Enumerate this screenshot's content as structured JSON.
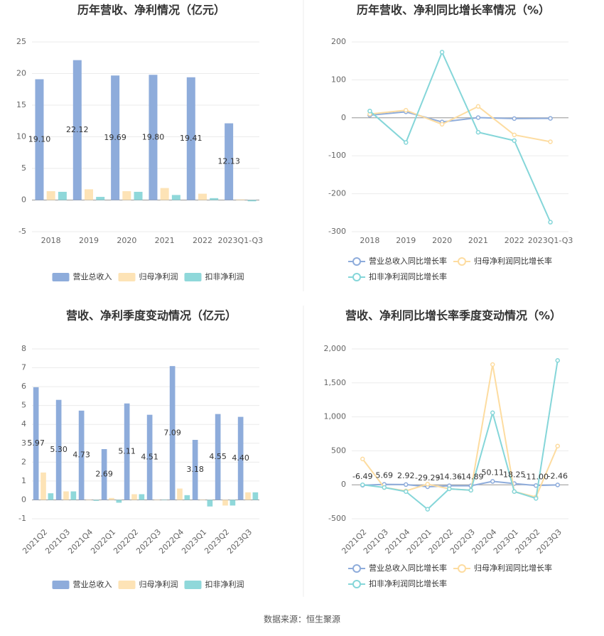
{
  "chart_data": [
    {
      "type": "bar",
      "title": "历年营收、净利情况（亿元）",
      "categories": [
        "2018",
        "2019",
        "2020",
        "2021",
        "2022",
        "2023Q1-Q3"
      ],
      "series": [
        {
          "name": "营业总收入",
          "color": "#8eacdb",
          "values": [
            19.1,
            22.12,
            19.69,
            19.8,
            19.41,
            12.13
          ],
          "value_labels": [
            "19.10",
            "22.12",
            "19.69",
            "19.80",
            "19.41",
            "12.13"
          ]
        },
        {
          "name": "归母净利润",
          "color": "#fde3b6",
          "values": [
            1.4,
            1.7,
            1.4,
            1.9,
            1.0,
            0.1
          ]
        },
        {
          "name": "扣非净利润",
          "color": "#8fd8da",
          "values": [
            1.3,
            0.5,
            1.3,
            0.8,
            0.3,
            -0.2
          ]
        }
      ],
      "ylim": [
        -5,
        25
      ],
      "yticks": [
        -5,
        0,
        5,
        10,
        15,
        20,
        25
      ],
      "grid": true
    },
    {
      "type": "line",
      "title": "历年营收、净利同比增长率情况（%）",
      "categories": [
        "2018",
        "2019",
        "2020",
        "2021",
        "2022",
        "2023Q1-Q3"
      ],
      "series": [
        {
          "name": "营业总收入同比增长率",
          "color": "#8eacdb",
          "values": [
            6.85,
            15.82,
            -10.99,
            0.58,
            -1.99,
            -1.47
          ]
        },
        {
          "name": "归母净利润同比增长率",
          "color": "#fddca0",
          "values": [
            10,
            20,
            -17,
            30,
            -45,
            -63
          ]
        },
        {
          "name": "扣非净利润同比增长率",
          "color": "#85d6d9",
          "values": [
            18,
            -65,
            173,
            -38,
            -60,
            -275
          ]
        }
      ],
      "ylim": [
        -300,
        200
      ],
      "yticks": [
        -300,
        -200,
        -100,
        0,
        100,
        200
      ],
      "grid": true
    },
    {
      "type": "bar",
      "title": "营收、净利季度变动情况（亿元）",
      "categories": [
        "2021Q2",
        "2021Q3",
        "2021Q4",
        "2022Q1",
        "2022Q2",
        "2022Q3",
        "2022Q4",
        "2023Q1",
        "2023Q2",
        "2023Q3"
      ],
      "series": [
        {
          "name": "营业总收入",
          "color": "#8eacdb",
          "values": [
            5.97,
            5.3,
            4.73,
            2.69,
            5.11,
            4.51,
            7.09,
            3.18,
            4.55,
            4.4
          ],
          "value_labels": [
            "5.97",
            "5.30",
            "4.73",
            "2.69",
            "5.11",
            "4.51",
            "7.09",
            "3.18",
            "4.55",
            "4.40"
          ]
        },
        {
          "name": "归母净利润",
          "color": "#fde3b6",
          "values": [
            1.45,
            0.45,
            0.02,
            0.1,
            0.3,
            0.02,
            0.6,
            0.02,
            -0.3,
            0.4
          ]
        },
        {
          "name": "扣非净利润",
          "color": "#8fd8da",
          "values": [
            0.35,
            0.45,
            -0.05,
            -0.15,
            0.3,
            0.02,
            0.25,
            -0.35,
            -0.3,
            0.4
          ]
        }
      ],
      "ylim": [
        -1,
        8
      ],
      "yticks": [
        -1,
        0,
        1,
        2,
        3,
        4,
        5,
        6,
        7,
        8
      ],
      "grid": true
    },
    {
      "type": "line",
      "title": "营收、净利同比增长率季度变动情况（%）",
      "categories": [
        "2021Q2",
        "2021Q3",
        "2021Q4",
        "2022Q1",
        "2022Q2",
        "2022Q3",
        "2022Q4",
        "2023Q1",
        "2023Q2",
        "2023Q3"
      ],
      "series": [
        {
          "name": "营业总收入同比增长率",
          "color": "#8eacdb",
          "values": [
            -6.49,
            5.69,
            2.92,
            -29.29,
            -14.36,
            -14.89,
            50.11,
            18.25,
            -11.0,
            -2.46
          ],
          "value_labels": [
            "-6.49",
            "5.69",
            "2.92",
            "-29.29",
            "-14.36",
            "-14.89",
            "50.11",
            "18.25",
            "-11.00",
            "-2.46"
          ]
        },
        {
          "name": "归母净利润同比增长率",
          "color": "#fddca0",
          "values": [
            380,
            -40,
            -90,
            10,
            -60,
            -80,
            1770,
            -100,
            -180,
            570
          ]
        },
        {
          "name": "扣非净利润同比增长率",
          "color": "#85d6d9",
          "values": [
            0,
            -40,
            -100,
            -360,
            -60,
            -80,
            1060,
            -100,
            -200,
            1830
          ]
        }
      ],
      "ylim": [
        -500,
        2000
      ],
      "yticks": [
        -500,
        0,
        500,
        {
          "value": 1000,
          "label": "1,000"
        },
        {
          "value": 1500,
          "label": "1,500"
        },
        {
          "value": 2000,
          "label": "2,000"
        }
      ],
      "grid": true
    }
  ],
  "source": "数据来源：恒生聚源"
}
